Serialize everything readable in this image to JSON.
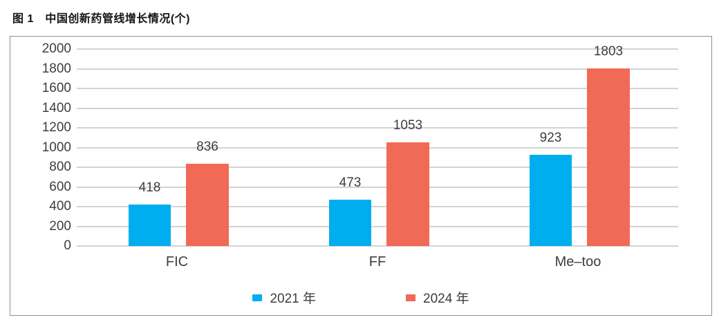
{
  "figure_title": "图 1　中国创新药管线增长情况(个)",
  "chart_data": {
    "type": "bar",
    "title": "中国创新药管线增长情况(个)",
    "categories": [
      "FIC",
      "FF",
      "Me–too"
    ],
    "series": [
      {
        "name": "2021 年",
        "color": "#00AEEF",
        "values": [
          418,
          473,
          923
        ]
      },
      {
        "name": "2024 年",
        "color": "#F16A55",
        "values": [
          836,
          1053,
          1803
        ]
      }
    ],
    "xlabel": "",
    "ylabel": "",
    "ylim": [
      0,
      2000
    ],
    "yticks": [
      0,
      200,
      400,
      600,
      800,
      1000,
      1200,
      1400,
      1600,
      1800,
      2000
    ],
    "grid": true,
    "bar_labels": true,
    "legend_position": "bottom"
  },
  "colors": {
    "series_2021": "#00AEEF",
    "series_2024": "#F16A55",
    "gridline": "#D3D3D3",
    "box_border": "#8F8F8F",
    "text": "#3D3D3D"
  }
}
